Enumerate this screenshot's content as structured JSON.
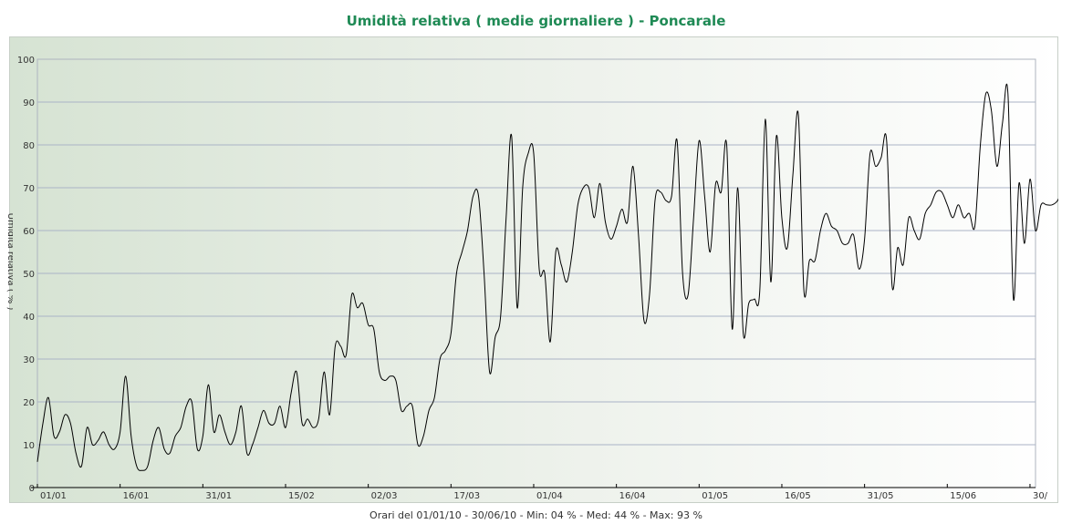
{
  "chart_data": {
    "type": "line",
    "title": "Umidità relativa ( medie giornaliere ) - Poncarale",
    "ylabel": "Umidità relativa ( % )",
    "xlabel": "Orari del 01/01/10 - 30/06/10 - Min: 04 % - Med: 44 % - Max: 93 %",
    "ylim": [
      0,
      100
    ],
    "yticks": [
      "0",
      "10",
      "20",
      "30",
      "40",
      "50",
      "60",
      "70",
      "80",
      "90",
      "100"
    ],
    "xlim": [
      0,
      181
    ],
    "xticks": [
      {
        "day": 0,
        "label": "01/01"
      },
      {
        "day": 15,
        "label": "16/01"
      },
      {
        "day": 30,
        "label": "31/01"
      },
      {
        "day": 45,
        "label": "15/02"
      },
      {
        "day": 60,
        "label": "02/03"
      },
      {
        "day": 75,
        "label": "17/03"
      },
      {
        "day": 90,
        "label": "01/04"
      },
      {
        "day": 105,
        "label": "16/04"
      },
      {
        "day": 120,
        "label": "01/05"
      },
      {
        "day": 135,
        "label": "16/05"
      },
      {
        "day": 150,
        "label": "31/05"
      },
      {
        "day": 165,
        "label": "15/06"
      },
      {
        "day": 180,
        "label": "30/"
      }
    ],
    "grid": true,
    "legend": "none",
    "line_color": "#000000",
    "series": [
      {
        "values": [
          6,
          15,
          21,
          12,
          13,
          17,
          15,
          8,
          5,
          14,
          10,
          11,
          13,
          10,
          9,
          13,
          26,
          12,
          5,
          4,
          5,
          11,
          14,
          9,
          8,
          12,
          14,
          19,
          20,
          9,
          12,
          24,
          13,
          17,
          13,
          10,
          13,
          19,
          8,
          10,
          14,
          18,
          15,
          15,
          19,
          14,
          22,
          27,
          15,
          16,
          14,
          16,
          27,
          17,
          33,
          33,
          31,
          45,
          42,
          43,
          38,
          37,
          27,
          25,
          26,
          25,
          18,
          19,
          19,
          10,
          12,
          18,
          21,
          30,
          32,
          36,
          50,
          55,
          60,
          68,
          68,
          50,
          27,
          35,
          40,
          63,
          82,
          42,
          70,
          78,
          78,
          51,
          50,
          34,
          55,
          52,
          48,
          55,
          66,
          70,
          70,
          63,
          71,
          62,
          58,
          61,
          65,
          62,
          75,
          59,
          39,
          45,
          67,
          69,
          67,
          68,
          81,
          50,
          45,
          63,
          81,
          68,
          55,
          71,
          69,
          80,
          37,
          70,
          36,
          43,
          44,
          46,
          86,
          48,
          82,
          63,
          56,
          73,
          87,
          46,
          53,
          53,
          60,
          64,
          61,
          60,
          57,
          57,
          59,
          51,
          58,
          78,
          75,
          77,
          81,
          47,
          56,
          52,
          63,
          60,
          58,
          64,
          66,
          69,
          69,
          66,
          63,
          66,
          63,
          64,
          61,
          80,
          92,
          88,
          75,
          85,
          92,
          44,
          71,
          57,
          72,
          60,
          66,
          66,
          66,
          67,
          70
        ]
      }
    ]
  }
}
